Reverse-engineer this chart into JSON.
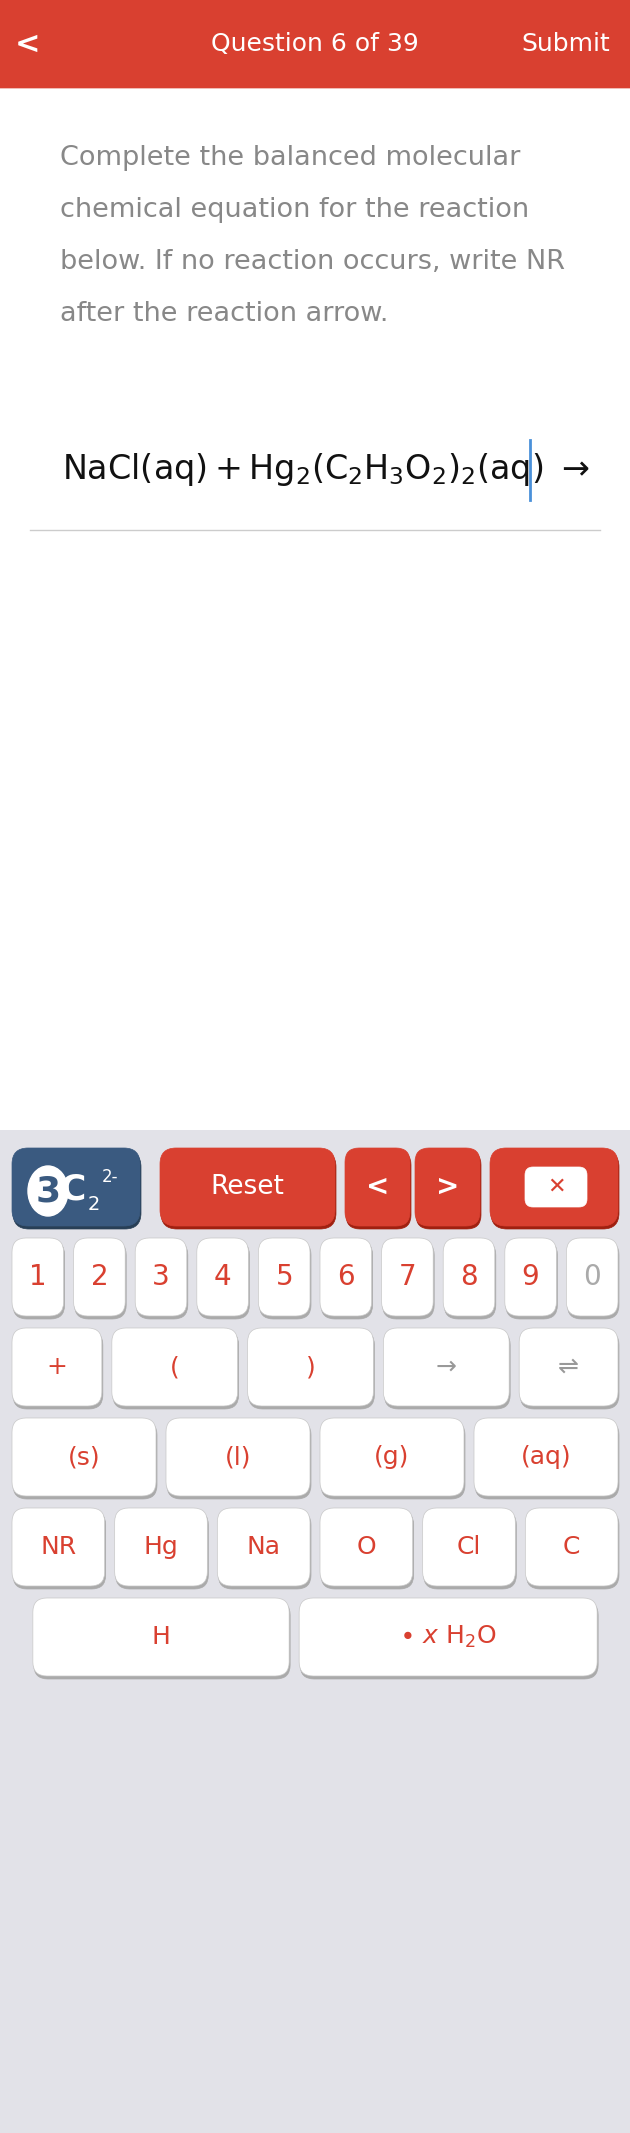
{
  "header_bg": "#D94030",
  "header_text_color": "#FFFFFF",
  "header_title": "Question 6 of 39",
  "header_submit": "Submit",
  "body_bg": "#FFFFFF",
  "question_text_color": "#888888",
  "question_lines": [
    "Complete the balanced molecular",
    "chemical equation for the reaction",
    "below. If no reaction occurs, write NR",
    "after the reaction arrow."
  ],
  "keyboard_bg": "#E2E2E8",
  "key_bg": "#FFFFFF",
  "key_text_color": "#D94030",
  "key_border": "#C8C8C8",
  "special_key_bg": "#D94030",
  "special_key_text": "#FFFFFF",
  "display_key_bg": "#3A5A80",
  "display_key_text": "#FFFFFF",
  "num_row": [
    "1",
    "2",
    "3",
    "4",
    "5",
    "6",
    "7",
    "8",
    "9",
    "0"
  ],
  "op_row": [
    "+",
    "(",
    ")",
    "→",
    "⇌"
  ],
  "state_row": [
    "(s)",
    "(l)",
    "(g)",
    "(aq)"
  ],
  "element_row": [
    "NR",
    "Hg",
    "Na",
    "O",
    "Cl",
    "C"
  ],
  "bottom_row_1": "H",
  "bottom_row_2": "• x H₂O"
}
